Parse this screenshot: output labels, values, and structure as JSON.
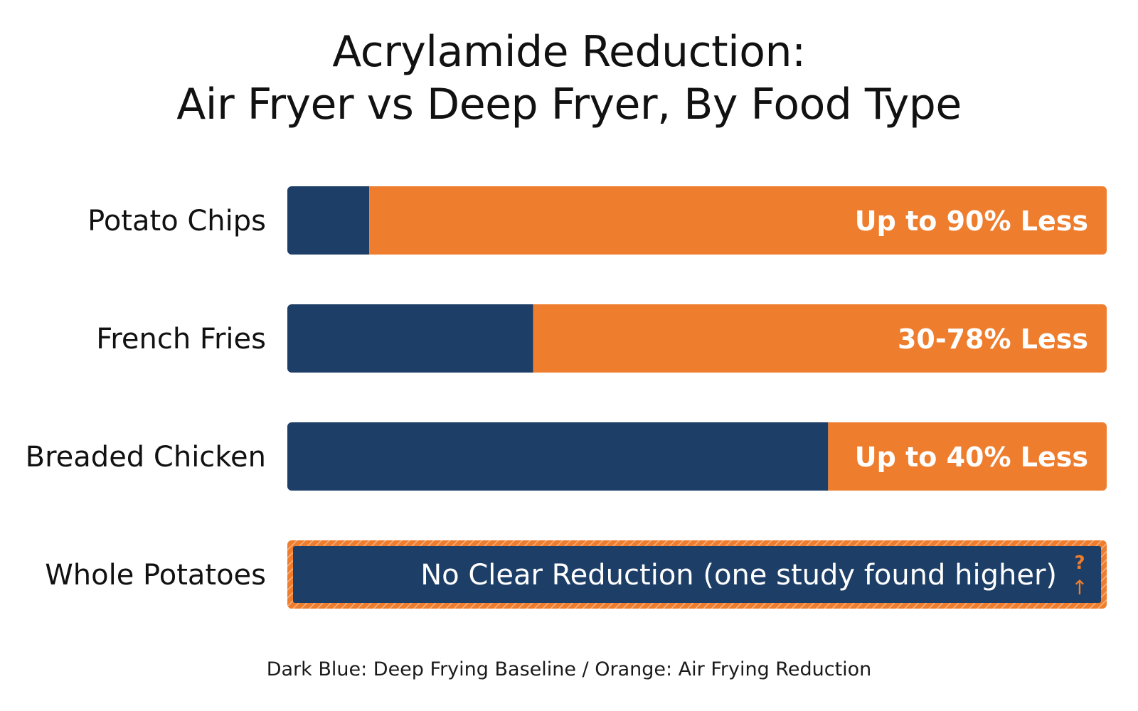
{
  "title": {
    "line1": "Acrylamide Reduction:",
    "line2": "Air Fryer vs Deep Fryer, By Food Type"
  },
  "legend_note": "Dark Blue: Deep Frying Baseline / Orange: Air Frying Reduction",
  "colors": {
    "deep_fry": "#1d3e66",
    "air_fry": "#ee7d2e",
    "label_text": "#111111",
    "bar_text": "#ffffff"
  },
  "chart_data": {
    "type": "bar",
    "orientation": "horizontal",
    "stacked": true,
    "categories": [
      "Potato Chips",
      "French Fries",
      "Breaded Chicken",
      "Whole Potatoes"
    ],
    "series": [
      {
        "name": "Deep Frying Baseline",
        "values": [
          10,
          30,
          66,
          100
        ]
      },
      {
        "name": "Air Frying Reduction",
        "values": [
          90,
          70,
          34,
          0
        ]
      }
    ],
    "data_labels": [
      "Up to 90% Less",
      "30-78% Less",
      "Up to 40% Less",
      "No Clear Reduction (one study found higher)"
    ],
    "flag_glyphs": {
      "question": "?",
      "arrow": "↑"
    },
    "xlim": [
      0,
      100
    ],
    "grid": false,
    "legend": "bottom"
  }
}
